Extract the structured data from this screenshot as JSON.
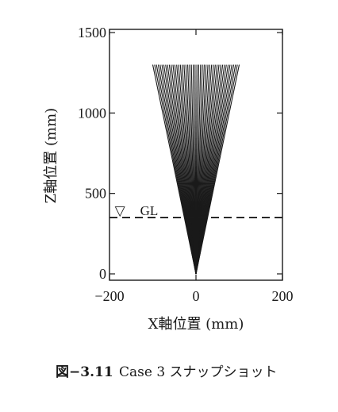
{
  "chart_data": {
    "type": "line",
    "title": "",
    "xlabel": "X軸位置 (mm)",
    "ylabel": "Z軸位置 (mm)",
    "xlim": [
      -200,
      200
    ],
    "ylim": [
      0,
      1500
    ],
    "xticks": [
      "−200",
      "0",
      "200"
    ],
    "yticks": [
      "0",
      "500",
      "1000",
      "1500"
    ],
    "xtick_values": [
      -200,
      0,
      200
    ],
    "ytick_values": [
      0,
      500,
      1000,
      1500
    ],
    "grid": false,
    "fan": {
      "origin": [
        0,
        0
      ],
      "top_z": 1300,
      "top_x_min": -100,
      "top_x_max": 100,
      "line_count": 48,
      "color": "#1a1a1a"
    },
    "ground_level": {
      "z": 350,
      "label": "GL",
      "marker": "▽",
      "marker_x": -175,
      "style": "dashed"
    }
  },
  "caption": {
    "prefix": "図−3.11",
    "text": "Case 3 スナップショット"
  }
}
